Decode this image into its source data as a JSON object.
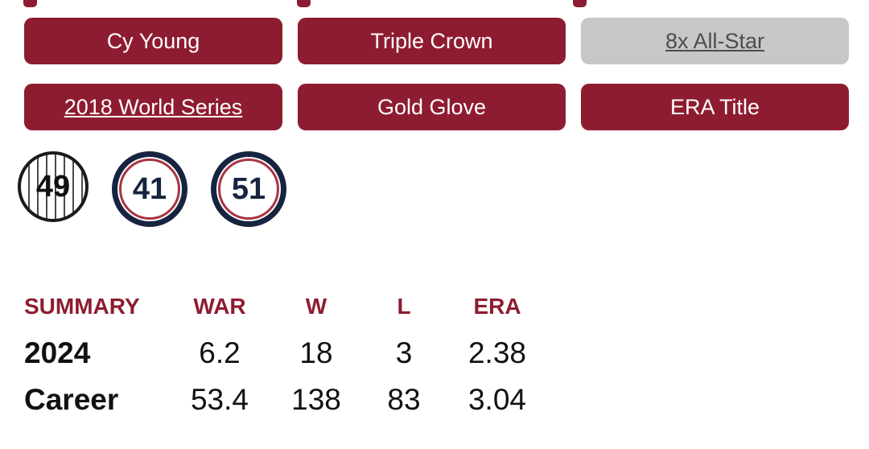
{
  "awards": [
    {
      "label": "Cy Young"
    },
    {
      "label": "Triple Crown"
    },
    {
      "label": "8x All-Star"
    },
    {
      "label": "2018 World Series"
    },
    {
      "label": "Gold Glove"
    },
    {
      "label": "ERA Title"
    }
  ],
  "retired_numbers": [
    "49",
    "41",
    "51"
  ],
  "summary_table": {
    "headers": [
      "SUMMARY",
      "WAR",
      "W",
      "L",
      "ERA"
    ],
    "rows": [
      {
        "label": "2024",
        "war": "6.2",
        "w": "18",
        "l": "3",
        "era": "2.38"
      },
      {
        "label": "Career",
        "war": "53.4",
        "w": "138",
        "l": "83",
        "era": "3.04"
      }
    ]
  },
  "colors": {
    "maroon": "#8e1c30",
    "gray_button": "#c7c7c7",
    "gray_text": "#4d4d4d",
    "navy": "#16243f",
    "ring_red": "#a93442",
    "text_black": "#111111"
  }
}
